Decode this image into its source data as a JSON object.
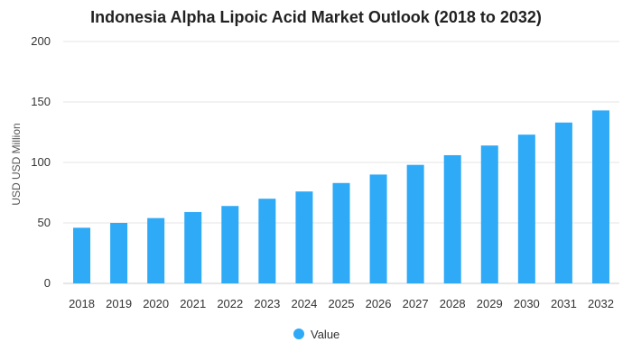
{
  "chart_data": {
    "type": "bar",
    "title": "Indonesia Alpha Lipoic Acid Market Outlook (2018 to 2032)",
    "xlabel": "",
    "ylabel": "USD USD Million",
    "categories": [
      "2018",
      "2019",
      "2020",
      "2021",
      "2022",
      "2023",
      "2024",
      "2025",
      "2026",
      "2027",
      "2028",
      "2029",
      "2030",
      "2031",
      "2032"
    ],
    "series": [
      {
        "name": "Value",
        "values": [
          46,
          50,
          54,
          59,
          64,
          70,
          76,
          83,
          90,
          98,
          106,
          114,
          123,
          133,
          143
        ]
      }
    ],
    "yticks": [
      0,
      50,
      100,
      150,
      200
    ],
    "ylim": [
      0,
      200
    ],
    "grid": true,
    "legend": "bottom-center",
    "colors": {
      "bar": "#2eaaf7",
      "grid": "#e6e6e6"
    }
  }
}
